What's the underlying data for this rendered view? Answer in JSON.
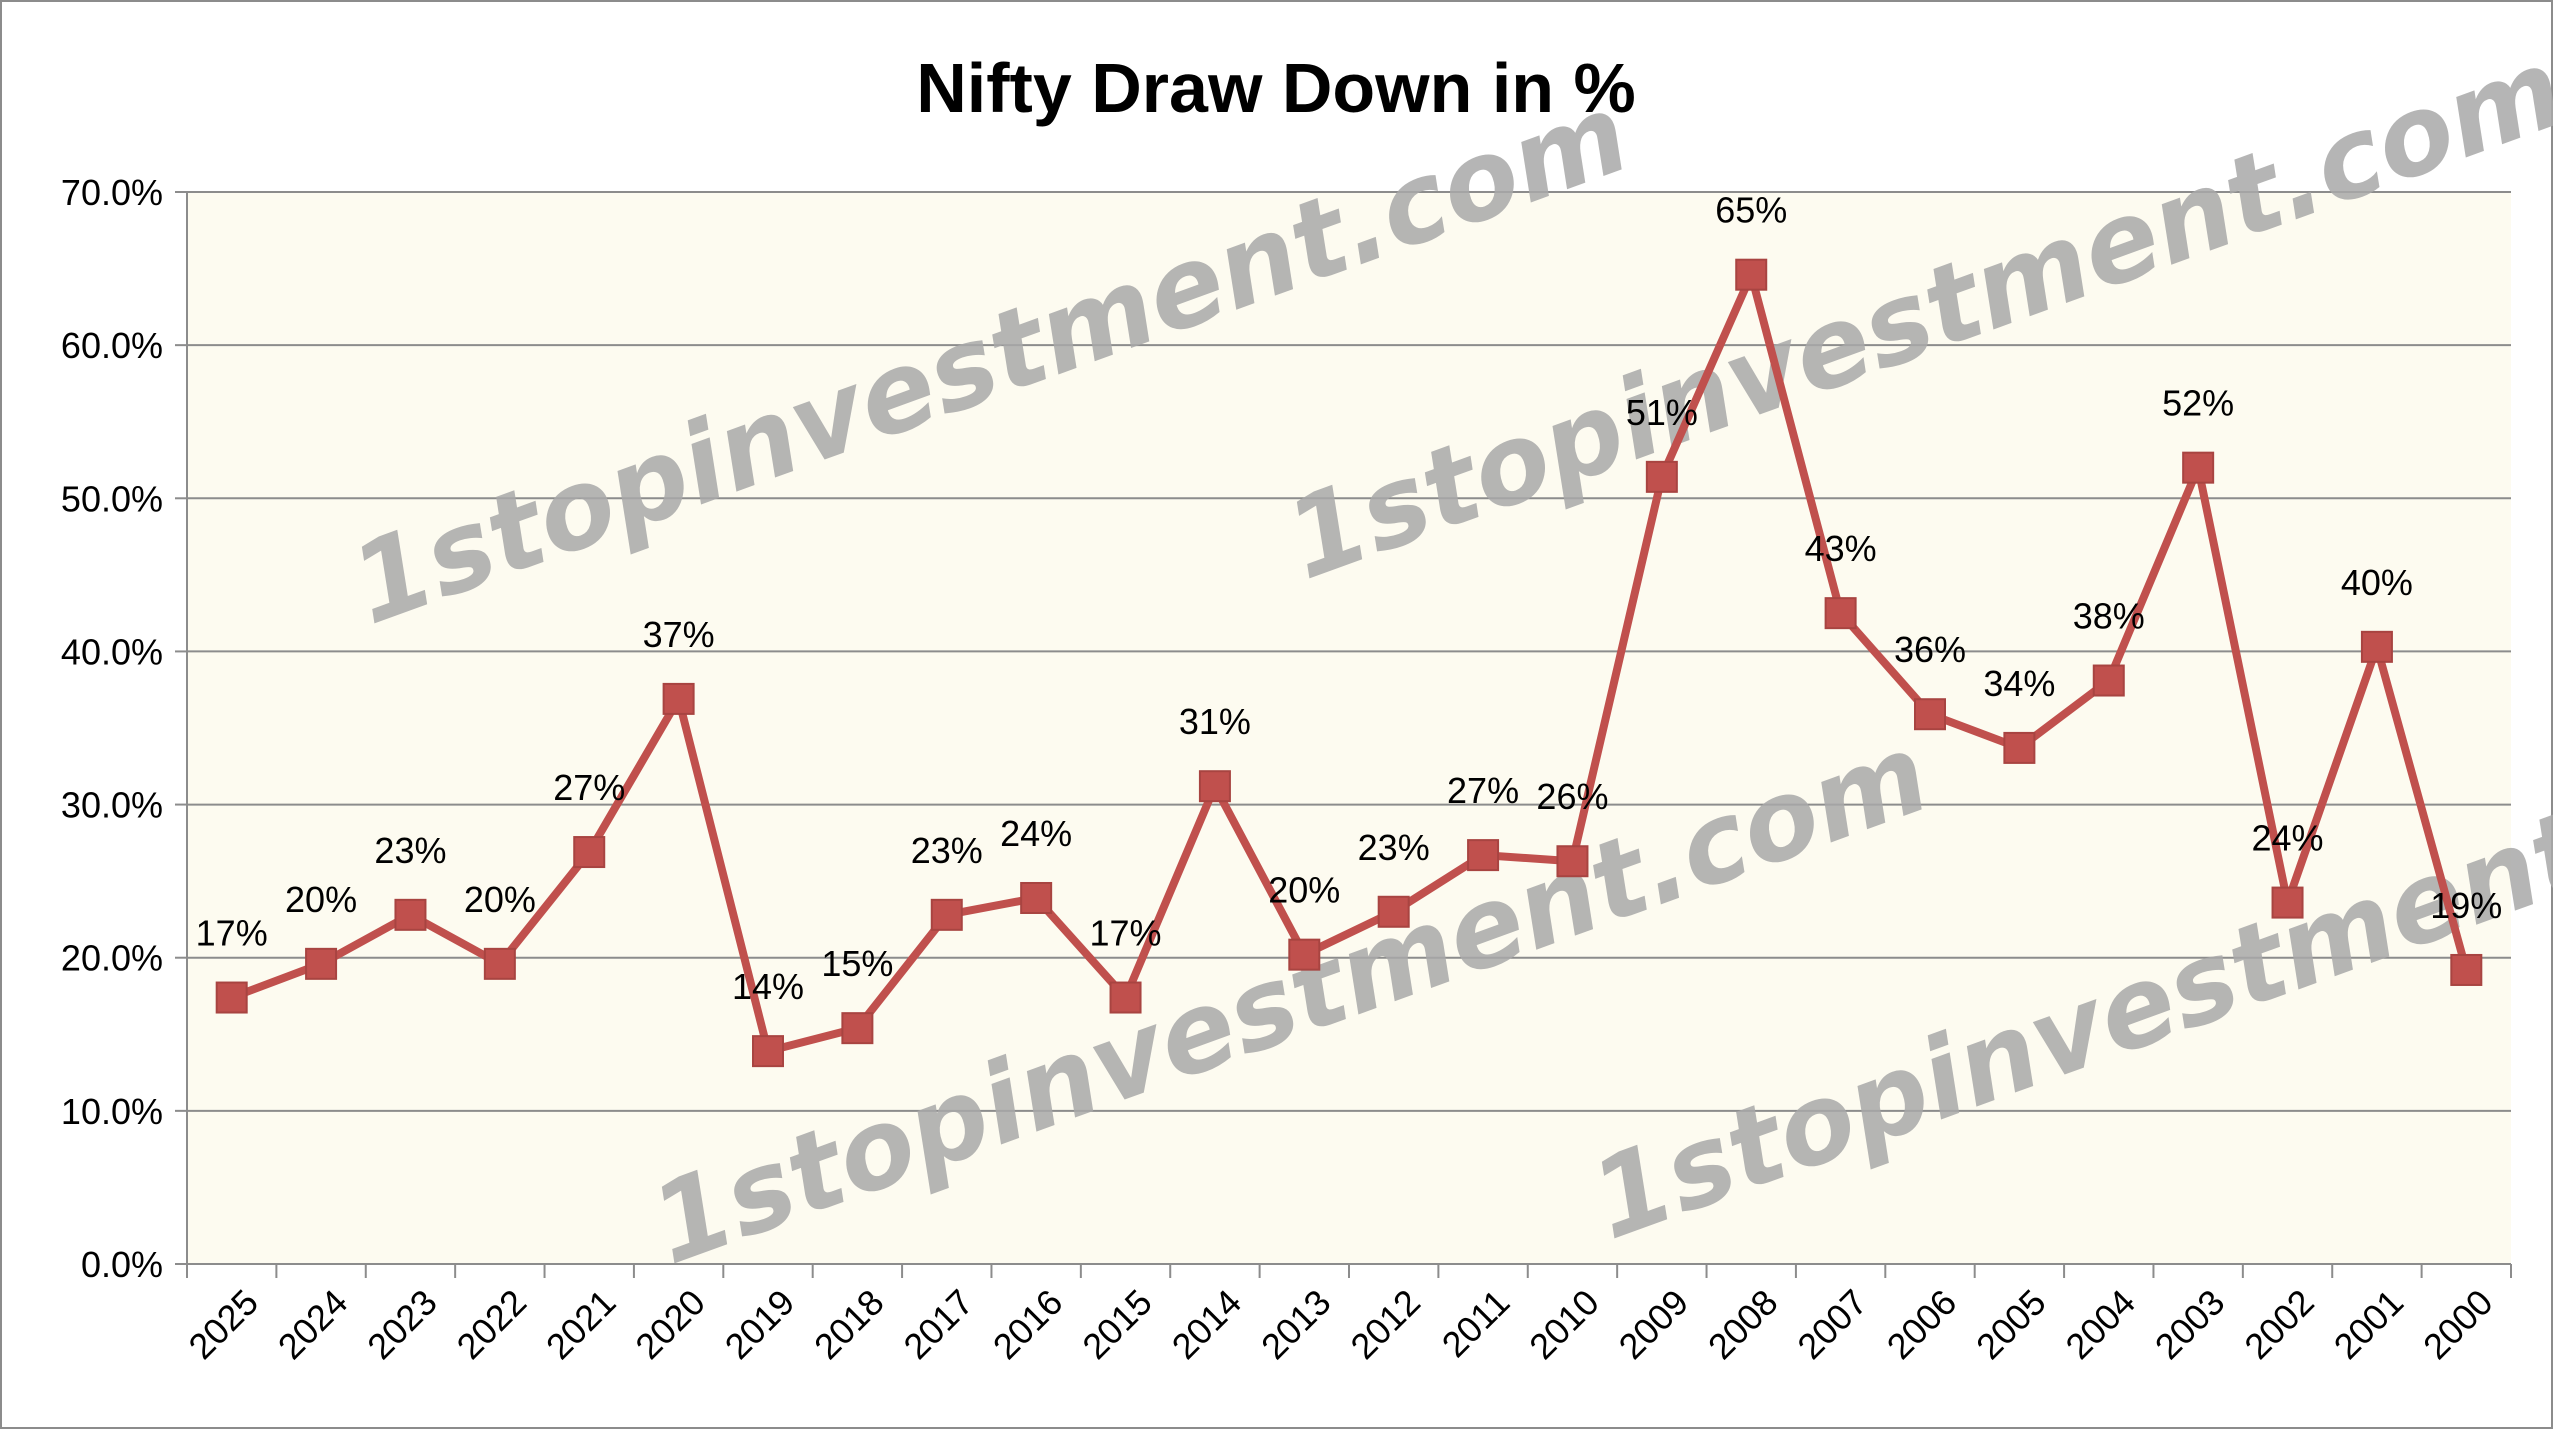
{
  "chart_data": {
    "type": "line",
    "title": "Nifty Draw Down in %",
    "xlabel": "",
    "ylabel": "",
    "categories": [
      "2025",
      "2024",
      "2023",
      "2022",
      "2021",
      "2020",
      "2019",
      "2018",
      "2017",
      "2016",
      "2015",
      "2014",
      "2013",
      "2012",
      "2011",
      "2010",
      "2009",
      "2008",
      "2007",
      "2006",
      "2005",
      "2004",
      "2003",
      "2002",
      "2001",
      "2000"
    ],
    "series": [
      {
        "values": [
          17.4,
          19.6,
          22.8,
          19.6,
          26.9,
          36.9,
          13.9,
          15.4,
          22.8,
          23.9,
          17.4,
          31.2,
          20.2,
          23.0,
          26.7,
          26.3,
          51.4,
          64.6,
          42.5,
          35.9,
          33.7,
          38.1,
          52.0,
          23.6,
          40.3,
          19.2
        ],
        "labels": [
          "17%",
          "20%",
          "23%",
          "20%",
          "27%",
          "37%",
          "14%",
          "15%",
          "23%",
          "24%",
          "17%",
          "31%",
          "20%",
          "23%",
          "27%",
          "26%",
          "51%",
          "65%",
          "43%",
          "36%",
          "34%",
          "38%",
          "52%",
          "24%",
          "40%",
          "19%"
        ],
        "color": "#c0504d",
        "marker": "square"
      }
    ],
    "yticks": [
      "0.0%",
      "10.0%",
      "20.0%",
      "30.0%",
      "40.0%",
      "50.0%",
      "60.0%",
      "70.0%"
    ],
    "ylim": [
      0,
      70
    ],
    "grid": true,
    "legend": "none",
    "plot_background": "#fdfbf0",
    "grid_color": "#8c8c8c"
  },
  "watermark": {
    "text": "1stopinvestment.com",
    "color": "#a9a9a9"
  }
}
